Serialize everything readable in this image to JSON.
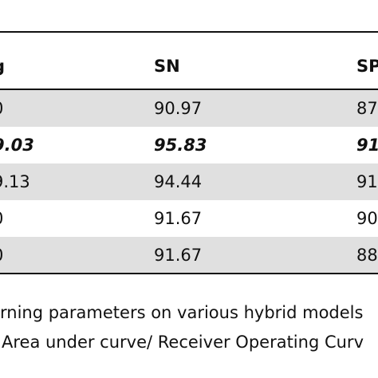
{
  "table": {
    "header": [
      "g",
      "SN",
      "SP"
    ],
    "rows": [
      [
        "0",
        "90.97",
        "87"
      ],
      [
        "9.03",
        "95.83",
        "91"
      ],
      [
        "9.13",
        "94.44",
        "91"
      ],
      [
        "0",
        "91.67",
        "90"
      ],
      [
        "0",
        "91.67",
        "88"
      ]
    ]
  },
  "caption": [
    "rning parameters on various hybrid models",
    "Area under curve/ Receiver Operating Curv"
  ]
}
